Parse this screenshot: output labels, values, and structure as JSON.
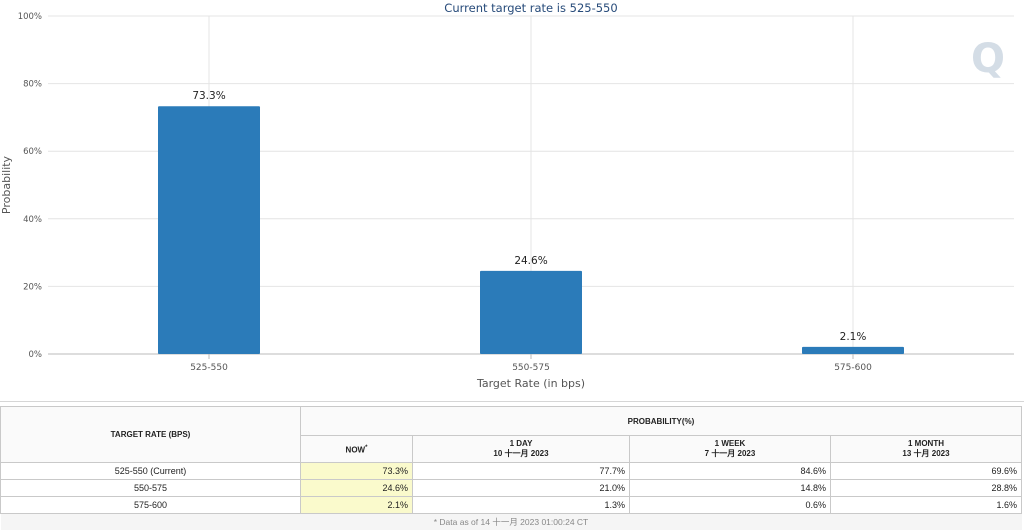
{
  "chart_data": {
    "type": "bar",
    "title": "Current target rate is 525-550",
    "xlabel": "Target Rate (in bps)",
    "ylabel": "Probability",
    "categories": [
      "525-550",
      "550-575",
      "575-600"
    ],
    "values": [
      73.3,
      24.6,
      2.1
    ],
    "data_labels": [
      "73.3%",
      "24.6%",
      "2.1%"
    ],
    "ylim": [
      0,
      100
    ],
    "yticks": [
      0,
      20,
      40,
      60,
      80,
      100
    ],
    "ytick_labels": [
      "0%",
      "20%",
      "40%",
      "60%",
      "80%",
      "100%"
    ],
    "grid": true,
    "bar_color": "#2b7bb9"
  },
  "watermark": "Q",
  "table": {
    "header_target": "TARGET RATE (BPS)",
    "header_probability": "PROBABILITY(%)",
    "columns": [
      {
        "label": "NOW",
        "marker": "*",
        "sub": ""
      },
      {
        "label": "1 DAY",
        "sub": "10 十一月 2023"
      },
      {
        "label": "1 WEEK",
        "sub": "7 十一月 2023"
      },
      {
        "label": "1 MONTH",
        "sub": "13 十月 2023"
      }
    ],
    "rows": [
      {
        "target": "525-550 (Current)",
        "now": "73.3%",
        "day": "77.7%",
        "week": "84.6%",
        "month": "69.6%"
      },
      {
        "target": "550-575",
        "now": "24.6%",
        "day": "21.0%",
        "week": "14.8%",
        "month": "28.8%"
      },
      {
        "target": "575-600",
        "now": "2.1%",
        "day": "1.3%",
        "week": "0.6%",
        "month": "1.6%"
      }
    ],
    "footnote": "* Data as of 14 十一月 2023 01:00:24 CT"
  }
}
